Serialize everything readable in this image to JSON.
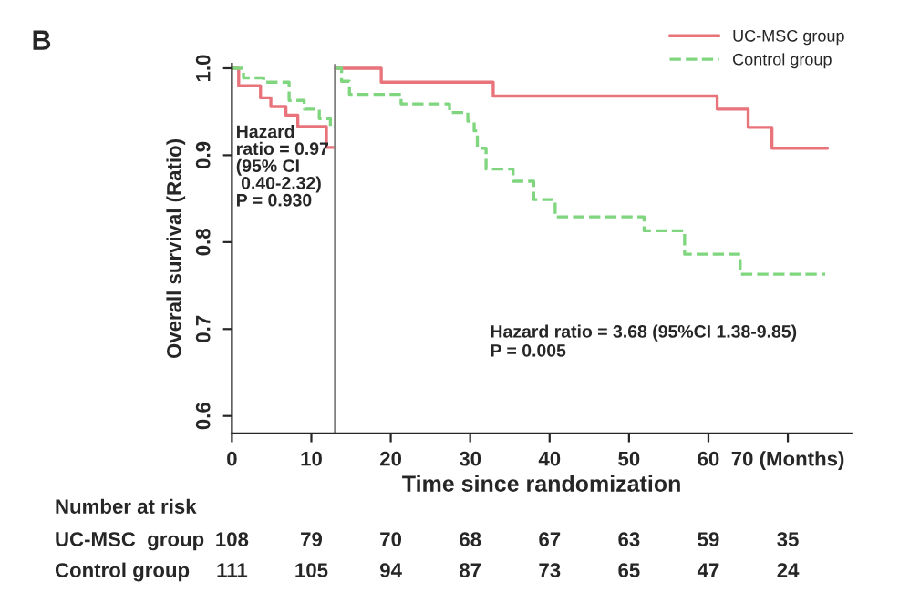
{
  "chart_data": {
    "type": "step",
    "title": "B",
    "xlabel": "Time since randomization",
    "ylabel": "Overall survival (Ratio)",
    "xlim": [
      0,
      78
    ],
    "xticks": [
      0,
      10,
      20,
      30,
      40,
      50,
      60,
      {
        "value": 70,
        "label": "70 (Months)"
      }
    ],
    "ylim": [
      0.58,
      1.005
    ],
    "yticks": [
      0.6,
      0.7,
      0.8,
      0.9,
      {
        "value": 1.0,
        "label": "1.0"
      }
    ],
    "grid": false,
    "legend": "top right",
    "marker": "none",
    "ref_lines": [
      {
        "axis": "x",
        "value": 13,
        "color": "#808080"
      }
    ],
    "series": [
      {
        "name": "UC-MSC group",
        "color": "#e8737a",
        "line_style": "solid",
        "x": [
          13,
          18.8,
          32.9,
          61.1,
          65,
          68,
          75
        ],
        "values": [
          1,
          0.984,
          0.968,
          0.953,
          0.932,
          0.908,
          0.908
        ]
      },
      {
        "name": "Control group",
        "color": "#7fd67f",
        "line_style": "dashed",
        "x": [
          13,
          13.8,
          14.8,
          21.3,
          27.4,
          29.7,
          30.5,
          30.9,
          32,
          35.4,
          38,
          40.7,
          51.9,
          57,
          64,
          74.7
        ],
        "values": [
          1,
          0.985,
          0.97,
          0.959,
          0.949,
          0.939,
          0.928,
          0.908,
          0.884,
          0.87,
          0.849,
          0.829,
          0.813,
          0.786,
          0.763,
          0.763
        ]
      },
      {
        "color": "#e8737a",
        "line_style": "solid",
        "x": [
          0,
          0.85,
          3.6,
          4.9,
          6.8,
          8.3,
          11.9,
          13
        ],
        "values": [
          1,
          0.98,
          0.966,
          0.956,
          0.946,
          0.933,
          0.909,
          0.909
        ]
      },
      {
        "color": "#7fd67f",
        "line_style": "dashed",
        "x": [
          0,
          1.45,
          4.0,
          7.2,
          9.1,
          11,
          12.4,
          13
        ],
        "values": [
          1,
          0.989,
          0.984,
          0.963,
          0.953,
          0.942,
          0.932,
          0.932
        ]
      }
    ],
    "annotations": [
      "Hazard\nratio = 0.97\n(95% CI\n 0.40-2.32)\nP = 0.930",
      "Hazard ratio = 3.68 (95%CI 1.38-9.85)\nP = 0.005",
      "Number at risk",
      "UC-MSC  group",
      "108",
      "79",
      "70",
      "68",
      "67",
      "63",
      "59",
      "35",
      "Control group",
      "111",
      "105",
      "94",
      "87",
      "73",
      "65",
      "47",
      "24"
    ]
  }
}
